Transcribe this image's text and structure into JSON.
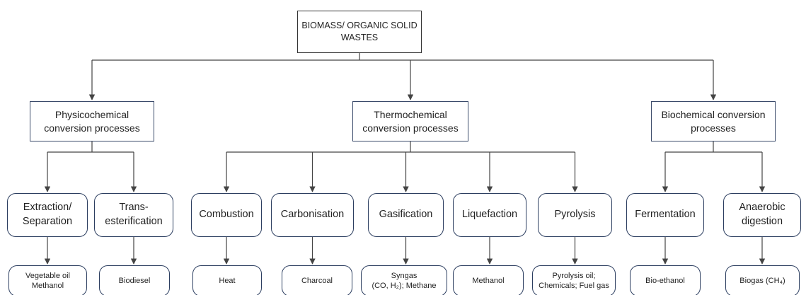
{
  "root": {
    "label": "BIOMASS/ ORGANIC SOLID WASTES"
  },
  "groups": [
    {
      "label": [
        "Physicochemical",
        "conversion processes"
      ],
      "processes": [
        {
          "label": [
            "Extraction/",
            "Separation"
          ],
          "product": [
            "Vegetable oil",
            "Methanol"
          ]
        },
        {
          "label": [
            "Trans-",
            "esterification"
          ],
          "product": [
            "Biodiesel"
          ]
        }
      ]
    },
    {
      "label": [
        "Thermochemical",
        "conversion processes"
      ],
      "processes": [
        {
          "label": [
            "Combustion"
          ],
          "product": [
            "Heat"
          ]
        },
        {
          "label": [
            "Carbonisation"
          ],
          "product": [
            "Charcoal"
          ]
        },
        {
          "label": [
            "Gasification"
          ],
          "product": [
            "Syngas",
            "(CO, H₂); Methane"
          ]
        },
        {
          "label": [
            "Liquefaction"
          ],
          "product": [
            "Methanol"
          ]
        },
        {
          "label": [
            "Pyrolysis"
          ],
          "product": [
            "Pyrolysis oil;",
            "Chemicals; Fuel gas"
          ]
        }
      ]
    },
    {
      "label": [
        "Biochemical conversion",
        "processes"
      ],
      "processes": [
        {
          "label": [
            "Fermentation"
          ],
          "product": [
            "Bio-ethanol"
          ]
        },
        {
          "label": [
            "Anaerobic",
            "digestion"
          ],
          "product": [
            "Biogas (CH₄)"
          ]
        }
      ]
    }
  ]
}
